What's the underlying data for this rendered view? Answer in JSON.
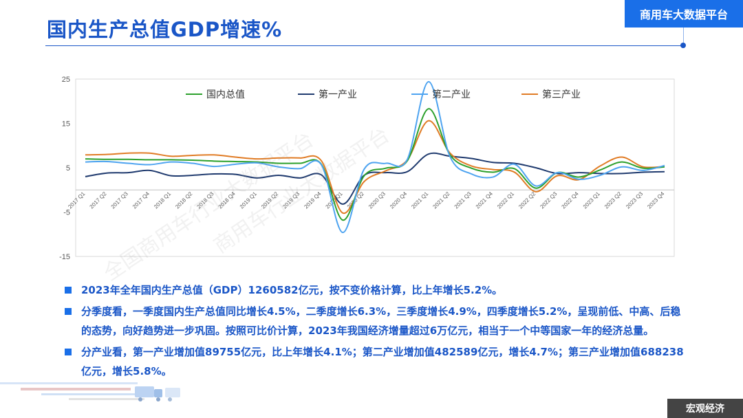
{
  "header": {
    "title": "国内生产总值GDP增速%",
    "brand": "商用车大数据平台"
  },
  "footer": {
    "section_tag": "宏观经济"
  },
  "watermark": {
    "text_a": "全国商用车行业大数据平台",
    "text_b": "商用车行业大数据平台"
  },
  "colors": {
    "accent": "#1a56c7",
    "series": [
      "#2ca02c",
      "#1f3a6e",
      "#4da3f0",
      "#e07b24"
    ]
  },
  "chart_data": {
    "type": "line",
    "title": "",
    "xlabel": "",
    "ylabel": "",
    "ylim": [
      -15,
      25
    ],
    "yticks": [
      "25",
      "15",
      "5",
      "-5",
      "-15"
    ],
    "grid": false,
    "legend_position": "top",
    "categories": [
      "2017 Q1",
      "2017 Q2",
      "2017 Q3",
      "2017 Q4",
      "2018 Q1",
      "2018 Q2",
      "2018 Q3",
      "2018 Q4",
      "2019 Q1",
      "2019 Q2",
      "2019 Q3",
      "2019 Q4",
      "2020 Q1",
      "2020 Q2",
      "2020 Q3",
      "2020 Q4",
      "2021 Q1",
      "2021 Q2",
      "2021 Q3",
      "2021 Q4",
      "2022 Q1",
      "2022 Q2",
      "2022 Q3",
      "2022 Q4",
      "2023 Q1",
      "2023 Q2",
      "2023 Q3",
      "2023 Q4"
    ],
    "series": [
      {
        "name": "国内总值",
        "values": [
          7.0,
          6.9,
          6.9,
          6.8,
          6.8,
          6.7,
          6.5,
          6.4,
          6.3,
          6.0,
          6.0,
          5.8,
          -6.8,
          3.2,
          4.9,
          6.5,
          18.3,
          7.9,
          4.9,
          4.0,
          4.8,
          0.4,
          3.9,
          2.9,
          4.5,
          6.3,
          4.9,
          5.2
        ]
      },
      {
        "name": "第一产业",
        "values": [
          3.0,
          3.8,
          3.9,
          4.4,
          3.2,
          3.3,
          3.6,
          3.5,
          2.7,
          3.3,
          2.7,
          3.4,
          -3.2,
          3.3,
          3.9,
          4.1,
          8.1,
          7.6,
          7.1,
          6.2,
          6.0,
          5.0,
          3.7,
          3.9,
          3.7,
          3.7,
          4.0,
          4.1
        ]
      },
      {
        "name": "第二产业",
        "values": [
          6.3,
          6.4,
          6.0,
          5.7,
          6.3,
          6.0,
          5.3,
          5.8,
          6.1,
          5.2,
          4.8,
          5.7,
          -9.6,
          4.7,
          6.0,
          6.8,
          24.4,
          7.5,
          3.6,
          2.9,
          5.8,
          0.9,
          3.9,
          2.4,
          3.3,
          5.2,
          4.4,
          5.5
        ]
      },
      {
        "name": "第三产业",
        "values": [
          7.9,
          8.0,
          8.3,
          8.3,
          7.6,
          7.8,
          7.9,
          7.4,
          7.0,
          7.2,
          7.2,
          6.6,
          -5.2,
          1.9,
          4.3,
          6.7,
          15.6,
          8.3,
          5.4,
          4.6,
          4.0,
          -0.4,
          3.2,
          2.3,
          5.4,
          7.4,
          5.2,
          5.3
        ]
      }
    ]
  },
  "notes": [
    "2023年全年国内生产总值（GDP）1260582亿元，按不变价格计算，比上年增长5.2%。",
    "分季度看，一季度国内生产总值同比增长4.5%，二季度增长6.3%，三季度增长4.9%，四季度增长5.2%，呈现前低、中高、后稳的态势，向好趋势进一步巩固。按照可比价计算，2023年我国经济增量超过6万亿元，相当于一个中等国家一年的经济总量。",
    "分产业看，第一产业增加值89755亿元，比上年增长4.1%；第二产业增加值482589亿元，增长4.7%；第三产业增加值688238亿元，增长5.8%。"
  ]
}
